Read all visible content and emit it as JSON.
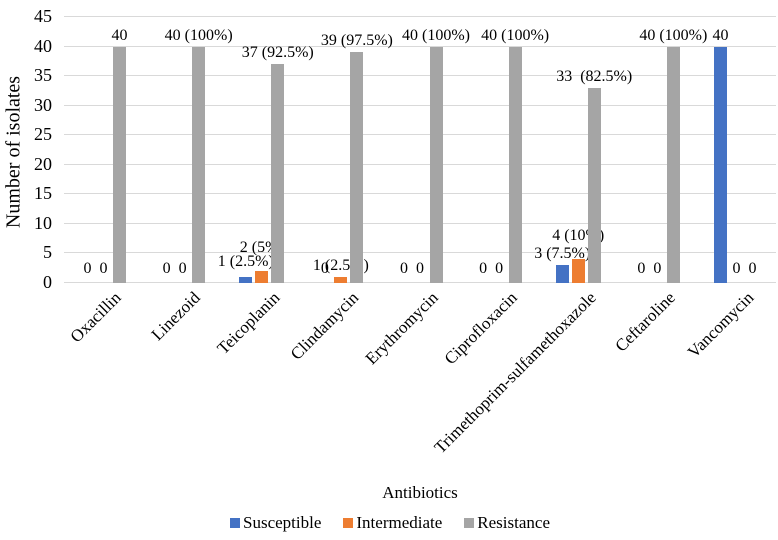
{
  "chart_data": {
    "type": "bar",
    "title": "",
    "xlabel": "Antibiotics",
    "ylabel": "Number of isolates",
    "ylim": [
      0,
      45
    ],
    "ytick_step": 5,
    "grid": true,
    "legend_position": "bottom",
    "categories": [
      "Oxacillin",
      "Linezoid",
      "Teicoplanin",
      "Clindamycin",
      "Erythromycin",
      "Ciprofloxacin",
      "Trimethoprim-sulfamethoxazole",
      "Ceftaroline",
      "Vancomycin"
    ],
    "series": [
      {
        "name": "Susceptible",
        "color": "#4472C4",
        "values": [
          0,
          0,
          1,
          0,
          0,
          0,
          3,
          0,
          40
        ],
        "labels": [
          "0",
          "0",
          "1 (2.5%)",
          "0",
          "0",
          "0",
          "3 (7.5%)",
          "0",
          "40"
        ]
      },
      {
        "name": "Intermediate",
        "color": "#ED7D31",
        "values": [
          0,
          0,
          2,
          1,
          0,
          0,
          4,
          0,
          0
        ],
        "labels": [
          "0",
          "0",
          "2 (5%)",
          "1 (2.5%)",
          "0",
          "0",
          "4 (10%)",
          "0",
          "0"
        ]
      },
      {
        "name": "Resistance",
        "color": "#A5A5A5",
        "values": [
          40,
          40,
          37,
          39,
          40,
          40,
          33,
          40,
          0
        ],
        "labels": [
          "40",
          "40 (100%)",
          "37 (92.5%)",
          "39 (97.5%)",
          "40 (100%)",
          "40 (100%)",
          "33  (82.5%)",
          "40 (100%)",
          "0"
        ]
      }
    ],
    "label_dy": {
      "Susceptible": [
        0,
        0,
        4,
        0,
        0,
        0,
        0,
        0,
        0
      ],
      "Intermediate": [
        0,
        0,
        12,
        0,
        0,
        0,
        12,
        0,
        0
      ],
      "Resistance": [
        0,
        0,
        0,
        0,
        0,
        0,
        0,
        0,
        0
      ]
    },
    "gridline_color": "#d9d9d9"
  }
}
